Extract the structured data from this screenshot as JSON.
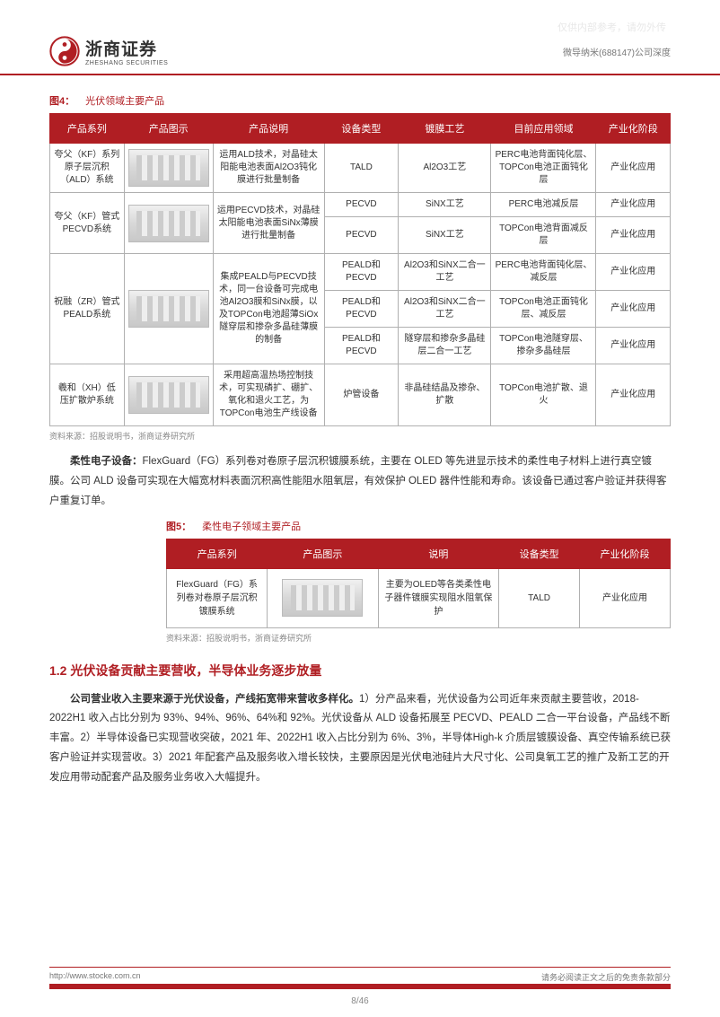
{
  "watermark": "仅供内部参考，请勿外传",
  "header": {
    "logo_cn": "浙商证券",
    "logo_en": "ZHESHANG SECURITIES",
    "right": "微导纳米(688147)公司深度"
  },
  "fig4": {
    "caption_num": "图4：",
    "caption_text": "光伏领域主要产品",
    "columns": [
      "产品系列",
      "产品图示",
      "产品说明",
      "设备类型",
      "镀膜工艺",
      "目前应用领域",
      "产业化阶段"
    ],
    "rows": [
      {
        "series": "夸父（KF）系列原子层沉积（ALD）系统",
        "desc": "运用ALD技术，对晶硅太阳能电池表面Al2O3钝化膜进行批量制备",
        "sub": [
          {
            "type": "TALD",
            "proc": "Al2O3工艺",
            "app": "PERC电池背面钝化层、TOPCon电池正面钝化层",
            "phase": "产业化应用"
          }
        ]
      },
      {
        "series": "夸父（KF）管式PECVD系统",
        "desc": "运用PECVD技术，对晶硅太阳能电池表面SiNx薄膜进行批量制备",
        "sub": [
          {
            "type": "PECVD",
            "proc": "SiNX工艺",
            "app": "PERC电池减反层",
            "phase": "产业化应用"
          },
          {
            "type": "PECVD",
            "proc": "SiNX工艺",
            "app": "TOPCon电池背面减反层",
            "phase": "产业化应用"
          }
        ]
      },
      {
        "series": "祝融（ZR）管式PEALD系统",
        "desc": "集成PEALD与PECVD技术，同一台设备可完成电池Al2O3膜和SiNx膜，以及TOPCon电池超薄SiOx隧穿层和掺杂多晶硅薄膜的制备",
        "sub": [
          {
            "type": "PEALD和PECVD",
            "proc": "Al2O3和SiNX二合一工艺",
            "app": "PERC电池背面钝化层、减反层",
            "phase": "产业化应用"
          },
          {
            "type": "PEALD和PECVD",
            "proc": "Al2O3和SiNX二合一工艺",
            "app": "TOPCon电池正面钝化层、减反层",
            "phase": "产业化应用"
          },
          {
            "type": "PEALD和PECVD",
            "proc": "隧穿层和掺杂多晶硅层二合一工艺",
            "app": "TOPCon电池隧穿层、掺杂多晶硅层",
            "phase": "产业化应用"
          }
        ]
      },
      {
        "series": "羲和（XH）低压扩散炉系统",
        "desc": "采用超高温热场控制技术，可实现磷扩、硼扩、氧化和退火工艺，为TOPCon电池生产线设备",
        "sub": [
          {
            "type": "炉管设备",
            "proc": "非晶硅结晶及掺杂、扩散",
            "app": "TOPCon电池扩散、退火",
            "phase": "产业化应用"
          }
        ]
      }
    ],
    "source": "资料来源：招股说明书，浙商证券研究所"
  },
  "para1": {
    "lead": "柔性电子设备：",
    "rest": "FlexGuard（FG）系列卷对卷原子层沉积镀膜系统，主要在 OLED 等先进显示技术的柔性电子材料上进行真空镀膜。公司 ALD 设备可实现在大幅宽材料表面沉积高性能阻水阻氧层，有效保护 OLED 器件性能和寿命。该设备已通过客户验证并获得客户重复订单。"
  },
  "fig5": {
    "caption_num": "图5：",
    "caption_text": "柔性电子领域主要产品",
    "columns": [
      "产品系列",
      "产品图示",
      "说明",
      "设备类型",
      "产业化阶段"
    ],
    "row": {
      "series": "FlexGuard（FG）系列卷对卷原子层沉积镀膜系统",
      "desc": "主要为OLED等各类柔性电子器件镀膜实现阻水阻氧保护",
      "type": "TALD",
      "phase": "产业化应用"
    },
    "source": "资料来源：招股说明书，浙商证券研究所"
  },
  "section_heading": "1.2 光伏设备贡献主要营收，半导体业务逐步放量",
  "para2": {
    "lead": "公司营业收入主要来源于光伏设备，产线拓宽带来营收多样化。",
    "rest": "1）分产品来看，光伏设备为公司近年来贡献主要营收，2018-2022H1 收入占比分别为 93%、94%、96%、64%和 92%。光伏设备从 ALD 设备拓展至 PECVD、PEALD 二合一平台设备，产品线不断丰富。2）半导体设备已实现营收突破，2021 年、2022H1 收入占比分别为 6%、3%，半导体High-k 介质层镀膜设备、真空传输系统已获客户验证并实现营收。3）2021 年配套产品及服务收入增长较快，主要原因是光伏电池硅片大尺寸化、公司臭氧工艺的推广及新工艺的开发应用带动配套产品及服务业务收入大幅提升。"
  },
  "footer": {
    "left": "http://www.stocke.com.cn",
    "right": "请务必阅读正文之后的免责条款部分",
    "page": "8/46"
  }
}
